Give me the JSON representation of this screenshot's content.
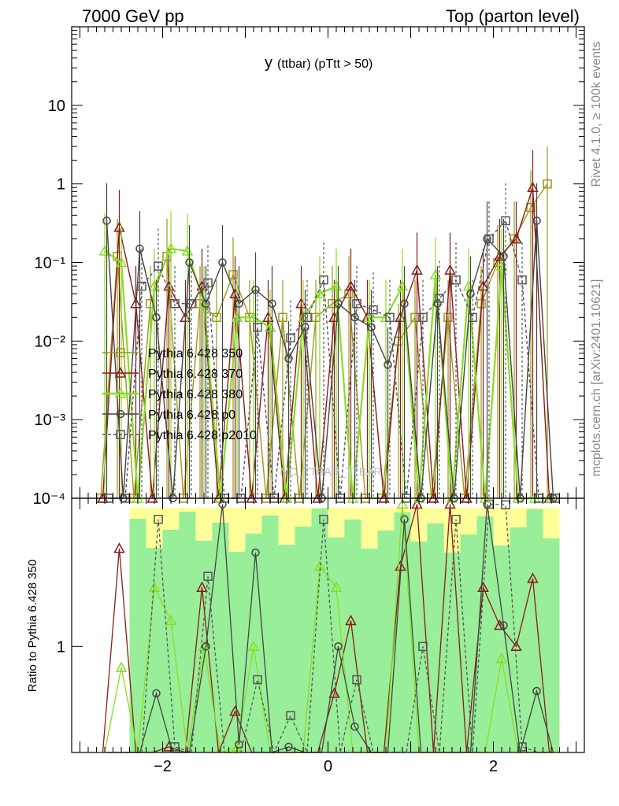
{
  "header": {
    "energy_label": "7000 GeV pp",
    "process_label": "Top (parton level)"
  },
  "side_labels": {
    "rivet": "Rivet 4.1.0, ≥ 100k events",
    "mcplots": "mcplots.cern.ch [arXiv:2401.10621]"
  },
  "chart_data": {
    "type": "line",
    "title_main": "y",
    "title_sub": "(ttbar) (pTtt > 50)",
    "watermark": "MC_TTBAR_TTBAR",
    "ylabel_ratio": "Ratio to Pythia 6.428 350",
    "xlim": [
      -3.1,
      3.1
    ],
    "ylim_main": [
      0.0001,
      100
    ],
    "y_log": true,
    "x_ticks": [
      "−2",
      "0",
      "2"
    ],
    "x_tick_values": [
      -2,
      0,
      2
    ],
    "y_ticks_main": [
      "10",
      "1",
      "10⁻¹",
      "10⁻²",
      "10⁻³",
      "10⁻⁴"
    ],
    "y_tick_values_main": [
      10,
      1,
      0.1,
      0.01,
      0.001,
      0.0001
    ],
    "ratio_tick_label": "1",
    "ratio_ylim": [
      0.4,
      3.6
    ],
    "ratio_log": true,
    "x": [
      -2.7,
      -2.5,
      -2.3,
      -2.1,
      -1.9,
      -1.7,
      -1.5,
      -1.3,
      -1.1,
      -0.9,
      -0.7,
      -0.5,
      -0.3,
      -0.1,
      0.1,
      0.3,
      0.5,
      0.7,
      0.9,
      1.1,
      1.3,
      1.5,
      1.7,
      1.9,
      2.1,
      2.3,
      2.5,
      2.7
    ],
    "series": [
      {
        "name": "Pythia 6.428 350",
        "color": "#9a9a1a",
        "marker": "square",
        "dash": false,
        "values": [
          0,
          0.12,
          0,
          0.03,
          0.12,
          0,
          0.03,
          0.02,
          0.07,
          0.02,
          0,
          0.02,
          0,
          0.02,
          0.03,
          0.04,
          0,
          0,
          0.01,
          0.02,
          0,
          0.02,
          0,
          0.03,
          0.1,
          0.2,
          0.5,
          1.0
        ]
      },
      {
        "name": "Pythia 6.428 370",
        "color": "#8b1a1a",
        "marker": "triangle",
        "dash": false,
        "values": [
          0,
          0.28,
          0.03,
          0,
          0.05,
          0.02,
          0.05,
          0,
          0.04,
          0,
          0.02,
          0,
          0.03,
          0,
          0.02,
          0.05,
          0.02,
          0,
          0.02,
          0.08,
          0,
          0.08,
          0,
          0.05,
          0.12,
          0.2,
          0.9,
          0
        ]
      },
      {
        "name": "Pythia 6.428 380",
        "color": "#88dd22",
        "marker": "triangle-line",
        "dash": false,
        "values": [
          0.14,
          0.1,
          0,
          0.05,
          0.15,
          0.14,
          0.03,
          0,
          0.02,
          0.02,
          0.015,
          0,
          0.02,
          0.04,
          0.05,
          0,
          0.02,
          0.02,
          0.05,
          0,
          0.07,
          0,
          0.05,
          0,
          0.09,
          0,
          0,
          0
        ]
      },
      {
        "name": "Pythia 6.428 p0",
        "color": "#444444",
        "marker": "circle",
        "dash": false,
        "values": [
          0.34,
          0,
          0.15,
          0.02,
          0,
          0.1,
          0.03,
          0.1,
          0.03,
          0.045,
          0.03,
          0.006,
          0.015,
          0,
          0.03,
          0.02,
          0.015,
          0.005,
          0.03,
          0,
          0.03,
          0,
          0.04,
          0.2,
          0.12,
          0,
          0.34,
          0
        ]
      },
      {
        "name": "Pythia 6.428 p2010",
        "color": "#555555",
        "marker": "square-open",
        "dash": true,
        "values": [
          0,
          0,
          0.05,
          0.09,
          0.03,
          0.03,
          0.055,
          0,
          0,
          0.015,
          0,
          0.011,
          0.02,
          0.06,
          0,
          0.03,
          0.025,
          0.02,
          0,
          0.02,
          0.035,
          0.06,
          0.02,
          0.2,
          0.34,
          0.06,
          0,
          0
        ]
      }
    ]
  }
}
